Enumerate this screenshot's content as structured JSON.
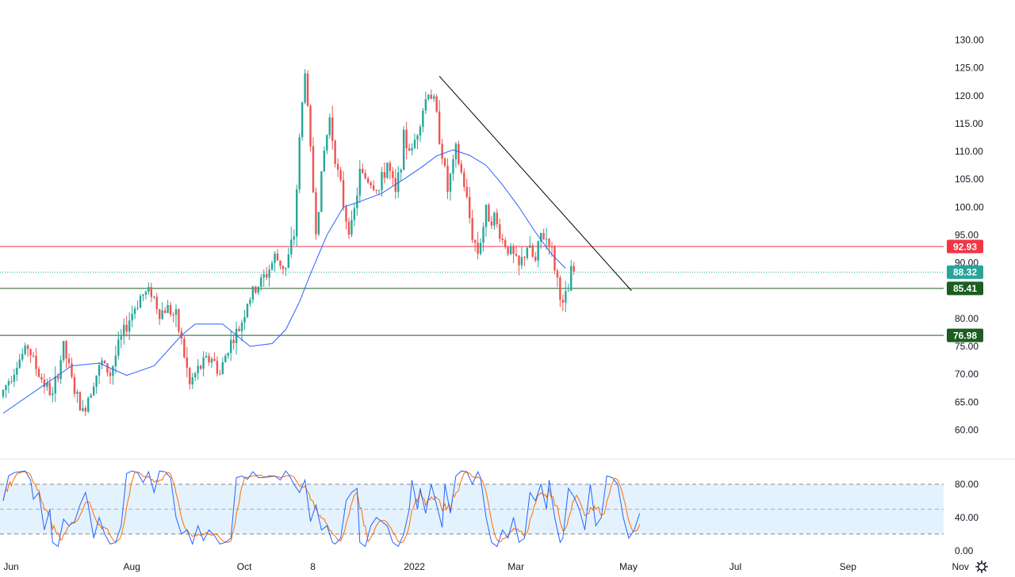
{
  "chart_data": {
    "type": "candlestick",
    "price_panel": {
      "ylim": [
        57.5,
        131.5
      ],
      "yticks": [
        130,
        125,
        120,
        115,
        110,
        105,
        100,
        95,
        90,
        80,
        75,
        70,
        65,
        60
      ],
      "ytick_labels": [
        "130.00",
        "125.00",
        "120.00",
        "115.00",
        "110.00",
        "105.00",
        "100.00",
        "95.00",
        "90.00",
        "80.00",
        "75.00",
        "70.00",
        "65.00",
        "60.00"
      ],
      "price_path": [
        [
          0,
          66
        ],
        [
          6,
          72
        ],
        [
          10,
          75
        ],
        [
          14,
          70
        ],
        [
          19,
          66
        ],
        [
          23,
          75
        ],
        [
          27,
          67
        ],
        [
          30,
          63
        ],
        [
          34,
          69
        ],
        [
          37,
          72
        ],
        [
          40,
          70
        ],
        [
          43,
          75
        ],
        [
          47,
          80
        ],
        [
          51,
          84
        ],
        [
          55,
          85
        ],
        [
          58,
          81
        ],
        [
          61,
          82
        ],
        [
          64,
          80
        ],
        [
          66,
          76
        ],
        [
          69,
          68
        ],
        [
          71,
          70
        ],
        [
          74,
          72
        ],
        [
          77,
          73
        ],
        [
          80,
          70
        ],
        [
          83,
          75
        ],
        [
          87,
          78
        ],
        [
          90,
          83
        ],
        [
          94,
          86
        ],
        [
          97,
          88
        ],
        [
          100,
          91
        ],
        [
          104,
          89
        ],
        [
          107,
          95
        ],
        [
          109,
          112
        ],
        [
          111,
          125
        ],
        [
          113,
          110
        ],
        [
          115,
          96
        ],
        [
          118,
          110
        ],
        [
          120,
          116
        ],
        [
          123,
          106
        ],
        [
          126,
          98
        ],
        [
          128,
          96
        ],
        [
          131,
          106
        ],
        [
          134,
          105
        ],
        [
          138,
          103
        ],
        [
          141,
          108
        ],
        [
          144,
          102
        ],
        [
          147,
          112
        ],
        [
          150,
          110
        ],
        [
          153,
          116
        ],
        [
          156,
          121
        ],
        [
          158,
          119
        ],
        [
          160,
          113
        ],
        [
          163,
          103
        ],
        [
          166,
          110
        ],
        [
          169,
          104
        ],
        [
          172,
          95
        ],
        [
          174,
          92
        ],
        [
          177,
          99
        ],
        [
          180,
          98
        ],
        [
          183,
          94
        ],
        [
          186,
          92
        ],
        [
          189,
          89
        ],
        [
          192,
          93
        ],
        [
          195,
          90
        ],
        [
          197,
          95
        ],
        [
          200,
          94
        ],
        [
          203,
          87
        ],
        [
          205,
          82
        ],
        [
          207,
          85
        ],
        [
          208,
          88.32
        ]
      ],
      "moving_average_path": [
        [
          0,
          63
        ],
        [
          25,
          71.5
        ],
        [
          35,
          72
        ],
        [
          45,
          69.8
        ],
        [
          55,
          71.5
        ],
        [
          65,
          77
        ],
        [
          70,
          79
        ],
        [
          80,
          79
        ],
        [
          90,
          75
        ],
        [
          98,
          75.5
        ],
        [
          103,
          78
        ],
        [
          108,
          83
        ],
        [
          112,
          88
        ],
        [
          118,
          95
        ],
        [
          124,
          100
        ],
        [
          130,
          101
        ],
        [
          138,
          102.5
        ],
        [
          146,
          105
        ],
        [
          152,
          107
        ],
        [
          158,
          109.2
        ],
        [
          164,
          110.3
        ],
        [
          170,
          109.3
        ],
        [
          176,
          107.5
        ],
        [
          182,
          104
        ],
        [
          188,
          100
        ],
        [
          194,
          95.5
        ],
        [
          200,
          91.5
        ],
        [
          205,
          89
        ]
      ],
      "last_price": 88.32,
      "horizontal_levels": [
        {
          "label": "92.93",
          "value": 92.93,
          "color": "#f23645"
        },
        {
          "label": "85.41",
          "value": 85.41,
          "color": "#1b5e20"
        },
        {
          "label": "76.98",
          "value": 76.98,
          "color": "#1b5e20"
        }
      ],
      "last_price_badge": {
        "label": "88.32",
        "value": 88.32,
        "color": "#26a69a"
      },
      "trendline": {
        "start": [
          159,
          123.5
        ],
        "end": [
          229,
          85.0
        ],
        "color": "#000000"
      }
    },
    "oscillator_panel": {
      "ylim": [
        -5,
        100
      ],
      "yticks": [
        80,
        40,
        0
      ],
      "ytick_labels": [
        "80.00",
        "40.00",
        "0.00"
      ],
      "band": [
        20,
        80
      ],
      "midline": 50,
      "k_path": [
        [
          0,
          60
        ],
        [
          2,
          90
        ],
        [
          4,
          94
        ],
        [
          6,
          95
        ],
        [
          8,
          96
        ],
        [
          10,
          85
        ],
        [
          11,
          62
        ],
        [
          13,
          70
        ],
        [
          15,
          25
        ],
        [
          17,
          50
        ],
        [
          18,
          10
        ],
        [
          20,
          5
        ],
        [
          22,
          38
        ],
        [
          24,
          30
        ],
        [
          26,
          35
        ],
        [
          28,
          55
        ],
        [
          30,
          70
        ],
        [
          31,
          55
        ],
        [
          33,
          15
        ],
        [
          35,
          40
        ],
        [
          37,
          20
        ],
        [
          39,
          8
        ],
        [
          41,
          10
        ],
        [
          43,
          30
        ],
        [
          45,
          93
        ],
        [
          47,
          96
        ],
        [
          49,
          94
        ],
        [
          51,
          82
        ],
        [
          53,
          95
        ],
        [
          55,
          70
        ],
        [
          57,
          96
        ],
        [
          59,
          95
        ],
        [
          61,
          88
        ],
        [
          63,
          40
        ],
        [
          65,
          20
        ],
        [
          67,
          25
        ],
        [
          69,
          8
        ],
        [
          71,
          30
        ],
        [
          73,
          12
        ],
        [
          75,
          25
        ],
        [
          77,
          18
        ],
        [
          79,
          8
        ],
        [
          81,
          10
        ],
        [
          83,
          15
        ],
        [
          85,
          88
        ],
        [
          87,
          90
        ],
        [
          89,
          86
        ],
        [
          91,
          95
        ],
        [
          93,
          88
        ],
        [
          95,
          88
        ],
        [
          97,
          90
        ],
        [
          99,
          90
        ],
        [
          101,
          85
        ],
        [
          103,
          96
        ],
        [
          104,
          92
        ],
        [
          106,
          80
        ],
        [
          108,
          70
        ],
        [
          110,
          85
        ],
        [
          112,
          35
        ],
        [
          114,
          55
        ],
        [
          116,
          25
        ],
        [
          118,
          30
        ],
        [
          120,
          10
        ],
        [
          121,
          8
        ],
        [
          123,
          15
        ],
        [
          125,
          60
        ],
        [
          127,
          70
        ],
        [
          129,
          75
        ],
        [
          130,
          10
        ],
        [
          132,
          5
        ],
        [
          134,
          30
        ],
        [
          136,
          40
        ],
        [
          138,
          35
        ],
        [
          140,
          30
        ],
        [
          142,
          10
        ],
        [
          144,
          5
        ],
        [
          146,
          20
        ],
        [
          148,
          50
        ],
        [
          149,
          85
        ],
        [
          151,
          50
        ],
        [
          152,
          75
        ],
        [
          154,
          45
        ],
        [
          156,
          80
        ],
        [
          158,
          55
        ],
        [
          160,
          28
        ],
        [
          161,
          80
        ],
        [
          163,
          45
        ],
        [
          165,
          90
        ],
        [
          167,
          96
        ],
        [
          169,
          95
        ],
        [
          171,
          80
        ],
        [
          173,
          95
        ],
        [
          174,
          88
        ],
        [
          176,
          40
        ],
        [
          178,
          10
        ],
        [
          180,
          5
        ],
        [
          182,
          25
        ],
        [
          184,
          15
        ],
        [
          186,
          40
        ],
        [
          188,
          10
        ],
        [
          190,
          15
        ],
        [
          192,
          70
        ],
        [
          194,
          60
        ],
        [
          196,
          80
        ],
        [
          198,
          50
        ],
        [
          199,
          85
        ],
        [
          201,
          40
        ],
        [
          203,
          10
        ],
        [
          204,
          15
        ],
        [
          206,
          75
        ],
        [
          208,
          65
        ],
        [
          210,
          50
        ],
        [
          212,
          25
        ],
        [
          214,
          80
        ],
        [
          216,
          30
        ],
        [
          218,
          40
        ],
        [
          220,
          90
        ],
        [
          222,
          88
        ],
        [
          224,
          80
        ],
        [
          226,
          40
        ],
        [
          228,
          15
        ],
        [
          230,
          25
        ],
        [
          232,
          45
        ]
      ]
    },
    "x_axis": {
      "ticks": [
        {
          "label": "Jun",
          "index": 0
        },
        {
          "label": "Aug",
          "index": 44
        },
        {
          "label": "Oct",
          "index": 85
        },
        {
          "label": "8",
          "index": 110
        },
        {
          "label": "2022",
          "index": 147
        },
        {
          "label": "Mar",
          "index": 184
        },
        {
          "label": "May",
          "index": 225
        },
        {
          "label": "Jul",
          "index": 264
        },
        {
          "label": "Sep",
          "index": 305
        },
        {
          "label": "Nov",
          "index": 346
        }
      ]
    },
    "colors": {
      "up": "#26a69a",
      "down": "#ef5350",
      "moving_average": "#2962ff",
      "k_line": "#2962ff",
      "d_line": "#ff6d00",
      "band_fill": "#e3f2fd"
    }
  },
  "ui": {
    "settings_icon": "gear-icon"
  }
}
